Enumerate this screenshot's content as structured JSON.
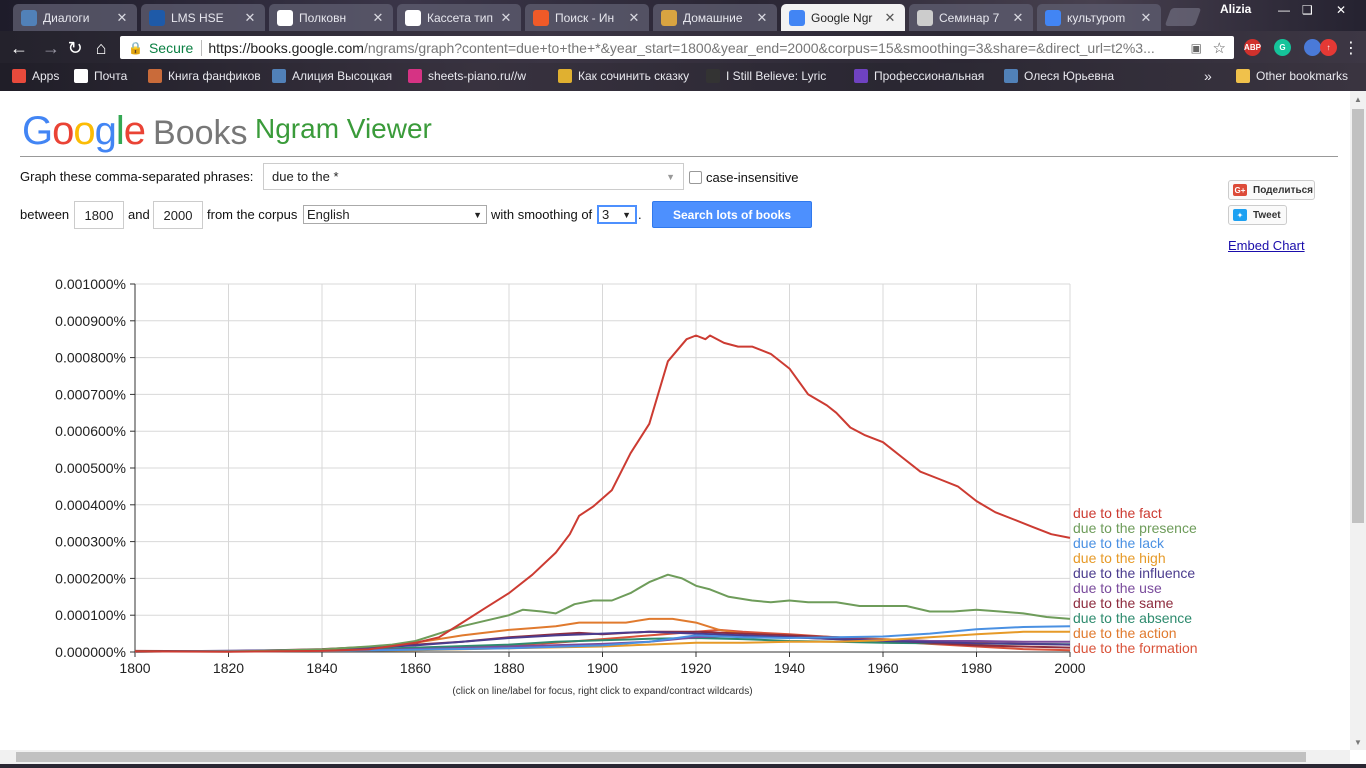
{
  "tabs": [
    {
      "label": "Диалоги",
      "favicon": "vk-icon",
      "color": "#5181b8",
      "active": false
    },
    {
      "label": "LMS HSE",
      "favicon": "lms-icon",
      "color": "#1e5aa8",
      "active": false
    },
    {
      "label": "Полковн",
      "favicon": "play-icon",
      "color": "#ffffff",
      "active": false
    },
    {
      "label": "Кассета тип",
      "favicon": "wikipedia-icon",
      "color": "#ffffff",
      "active": false
    },
    {
      "label": "Поиск - Ин",
      "favicon": "search-engine-icon",
      "color": "#f05a28",
      "active": false
    },
    {
      "label": "Домашние",
      "favicon": "home-icon",
      "color": "#d9a441",
      "active": false
    },
    {
      "label": "Google Ngr",
      "favicon": "google-icon",
      "color": "#4285f4",
      "active": true
    },
    {
      "label": "Семинар 7",
      "favicon": "book-icon",
      "color": "#cccccc",
      "active": false
    },
    {
      "label": "культуроm",
      "favicon": "google-icon",
      "color": "#4285f4",
      "active": false
    }
  ],
  "profile_name": "Alizia",
  "address": {
    "secure_label": "Secure",
    "url_host": "https://books.google.com",
    "url_rest": "/ngrams/graph?content=due+to+the+*&year_start=1800&year_end=2000&corpus=15&smoothing=3&share=&direct_url=t2%3..."
  },
  "extensions": [
    {
      "name": "adblock-icon",
      "text": "ABP",
      "color": "#d0312d"
    },
    {
      "name": "grammarly-icon",
      "text": "G",
      "color": "#15c39a"
    },
    {
      "name": "flag-icon",
      "text": "",
      "color": "#4a7ad8"
    },
    {
      "name": "update-icon",
      "text": "↑",
      "color": "#e53935"
    }
  ],
  "bookmarks": [
    {
      "label": "Apps",
      "color": "#e84a3c"
    },
    {
      "label": "Почта",
      "color": "#ffffff"
    },
    {
      "label": "Книга фанфиков",
      "color": "#c96b3a"
    },
    {
      "label": "Алиция Высоцкая",
      "color": "#5181b8"
    },
    {
      "label": "sheets-piano.ru//w",
      "color": "#d63384"
    },
    {
      "label": "Как сочинить сказку",
      "color": "#e0b030"
    },
    {
      "label": "I Still Believe: Lyric",
      "color": "#333333"
    },
    {
      "label": "Профессиональная",
      "color": "#6f42c1"
    },
    {
      "label": "Олеся Юрьевна",
      "color": "#5181b8"
    },
    {
      "label": "Other bookmarks",
      "color": "#f0c14b"
    }
  ],
  "bookmarks_overflow": "»",
  "header": {
    "logo_letters": [
      "G",
      "o",
      "o",
      "g",
      "l",
      "e"
    ],
    "logo_books": "Books",
    "title": "Ngram Viewer"
  },
  "form": {
    "phrases_label": "Graph these comma-separated phrases:",
    "phrases_value": "due to the *",
    "case_label": "case-insensitive",
    "between_label": "between",
    "year_start": "1800",
    "and_label": "and",
    "year_end": "2000",
    "corpus_label": "from the corpus",
    "corpus_value": "English",
    "smoothing_label": "with smoothing of",
    "smoothing_value": "3",
    "period": ".",
    "search_button": "Search lots of books"
  },
  "share": {
    "gplus_label": "Поделиться",
    "tweet_label": "Tweet",
    "embed_label": "Embed Chart"
  },
  "caption": "(click on line/label for focus, right click to expand/contract wildcards)",
  "chart_data": {
    "type": "line",
    "xlim": [
      1800,
      2000
    ],
    "ylim": [
      0,
      0.001
    ],
    "x_ticks": [
      "1800",
      "1820",
      "1840",
      "1860",
      "1880",
      "1900",
      "1920",
      "1940",
      "1960",
      "1980",
      "2000"
    ],
    "y_ticks": [
      "0.000000%",
      "0.000100%",
      "0.000200%",
      "0.000300%",
      "0.000400%",
      "0.000500%",
      "0.000600%",
      "0.000700%",
      "0.000800%",
      "0.000900%",
      "0.001000%"
    ],
    "grid": true,
    "legend_placement": "right",
    "series": [
      {
        "name": "due to the fact",
        "color": "#cc3b32",
        "points": [
          [
            1800,
            1.5e-06
          ],
          [
            1820,
            5e-07
          ],
          [
            1840,
            3e-06
          ],
          [
            1850,
            7e-06
          ],
          [
            1860,
            2.5e-05
          ],
          [
            1865,
            4e-05
          ],
          [
            1870,
            8e-05
          ],
          [
            1875,
            0.00012
          ],
          [
            1880,
            0.00016
          ],
          [
            1885,
            0.00021
          ],
          [
            1890,
            0.00027
          ],
          [
            1893,
            0.00032
          ],
          [
            1895,
            0.00037
          ],
          [
            1898,
            0.000395
          ],
          [
            1902,
            0.00044
          ],
          [
            1906,
            0.00054
          ],
          [
            1910,
            0.00062
          ],
          [
            1914,
            0.00079
          ],
          [
            1918,
            0.00085
          ],
          [
            1920,
            0.00086
          ],
          [
            1922,
            0.00085
          ],
          [
            1923,
            0.00086
          ],
          [
            1926,
            0.00084
          ],
          [
            1929,
            0.00083
          ],
          [
            1932,
            0.00083
          ],
          [
            1936,
            0.00081
          ],
          [
            1940,
            0.00077
          ],
          [
            1944,
            0.0007
          ],
          [
            1948,
            0.00067
          ],
          [
            1950,
            0.00065
          ],
          [
            1953,
            0.00061
          ],
          [
            1956,
            0.00059
          ],
          [
            1960,
            0.00057
          ],
          [
            1964,
            0.00053
          ],
          [
            1968,
            0.00049
          ],
          [
            1972,
            0.00047
          ],
          [
            1976,
            0.00045
          ],
          [
            1980,
            0.00041
          ],
          [
            1984,
            0.00038
          ],
          [
            1988,
            0.00036
          ],
          [
            1992,
            0.00034
          ],
          [
            1996,
            0.00032
          ],
          [
            2000,
            0.00031
          ]
        ]
      },
      {
        "name": "due to the presence",
        "color": "#6e9c5a",
        "points": [
          [
            1800,
            2e-06
          ],
          [
            1820,
            1e-06
          ],
          [
            1840,
            7e-06
          ],
          [
            1850,
            1.5e-05
          ],
          [
            1855,
            2e-05
          ],
          [
            1860,
            3e-05
          ],
          [
            1865,
            5e-05
          ],
          [
            1870,
            7e-05
          ],
          [
            1875,
            8.5e-05
          ],
          [
            1880,
            0.0001
          ],
          [
            1883,
            0.000115
          ],
          [
            1887,
            0.00011
          ],
          [
            1890,
            0.000105
          ],
          [
            1894,
            0.00013
          ],
          [
            1898,
            0.00014
          ],
          [
            1902,
            0.00014
          ],
          [
            1906,
            0.00016
          ],
          [
            1910,
            0.00019
          ],
          [
            1914,
            0.00021
          ],
          [
            1917,
            0.0002
          ],
          [
            1920,
            0.00018
          ],
          [
            1923,
            0.00017
          ],
          [
            1927,
            0.00015
          ],
          [
            1932,
            0.00014
          ],
          [
            1936,
            0.000135
          ],
          [
            1940,
            0.00014
          ],
          [
            1944,
            0.000135
          ],
          [
            1950,
            0.000135
          ],
          [
            1955,
            0.000125
          ],
          [
            1960,
            0.000125
          ],
          [
            1965,
            0.000125
          ],
          [
            1970,
            0.00011
          ],
          [
            1975,
            0.00011
          ],
          [
            1980,
            0.000115
          ],
          [
            1985,
            0.00011
          ],
          [
            1990,
            0.000105
          ],
          [
            1995,
            9.5e-05
          ],
          [
            2000,
            9e-05
          ]
        ]
      },
      {
        "name": "due to the lack",
        "color": "#4a90e2",
        "points": [
          [
            1800,
            1e-06
          ],
          [
            1840,
            3e-06
          ],
          [
            1860,
            6e-06
          ],
          [
            1880,
            1e-05
          ],
          [
            1900,
            1.8e-05
          ],
          [
            1910,
            2.8e-05
          ],
          [
            1920,
            4.5e-05
          ],
          [
            1930,
            4e-05
          ],
          [
            1940,
            3.8e-05
          ],
          [
            1950,
            4e-05
          ],
          [
            1960,
            4.2e-05
          ],
          [
            1970,
            5e-05
          ],
          [
            1980,
            6.2e-05
          ],
          [
            1990,
            6.8e-05
          ],
          [
            2000,
            7e-05
          ]
        ]
      },
      {
        "name": "due to the high",
        "color": "#e69a28",
        "points": [
          [
            1800,
            1e-06
          ],
          [
            1840,
            3e-06
          ],
          [
            1860,
            5e-06
          ],
          [
            1880,
            1e-05
          ],
          [
            1900,
            1.5e-05
          ],
          [
            1910,
            2e-05
          ],
          [
            1920,
            2.5e-05
          ],
          [
            1930,
            2.5e-05
          ],
          [
            1940,
            2.8e-05
          ],
          [
            1950,
            2.8e-05
          ],
          [
            1960,
            3.2e-05
          ],
          [
            1970,
            4e-05
          ],
          [
            1980,
            4.8e-05
          ],
          [
            1990,
            5.5e-05
          ],
          [
            2000,
            5.5e-05
          ]
        ]
      },
      {
        "name": "due to the influence",
        "color": "#4b3c8e",
        "points": [
          [
            1800,
            1e-06
          ],
          [
            1840,
            6e-06
          ],
          [
            1860,
            1.8e-05
          ],
          [
            1870,
            2.8e-05
          ],
          [
            1880,
            3.8e-05
          ],
          [
            1890,
            4.5e-05
          ],
          [
            1900,
            5e-05
          ],
          [
            1910,
            5.5e-05
          ],
          [
            1920,
            5e-05
          ],
          [
            1930,
            4.5e-05
          ],
          [
            1940,
            4e-05
          ],
          [
            1950,
            3.5e-05
          ],
          [
            1960,
            3e-05
          ],
          [
            1970,
            2.7e-05
          ],
          [
            1980,
            2.4e-05
          ],
          [
            1990,
            2.2e-05
          ],
          [
            2000,
            2e-05
          ]
        ]
      },
      {
        "name": "due to the use",
        "color": "#7a4b9c",
        "points": [
          [
            1800,
            1e-06
          ],
          [
            1840,
            3e-06
          ],
          [
            1860,
            8e-06
          ],
          [
            1880,
            1.5e-05
          ],
          [
            1900,
            2.2e-05
          ],
          [
            1910,
            2.8e-05
          ],
          [
            1920,
            4e-05
          ],
          [
            1930,
            4.5e-05
          ],
          [
            1940,
            4e-05
          ],
          [
            1950,
            3.5e-05
          ],
          [
            1960,
            3.3e-05
          ],
          [
            1970,
            3e-05
          ],
          [
            1980,
            3e-05
          ],
          [
            1990,
            2.8e-05
          ],
          [
            2000,
            2.8e-05
          ]
        ]
      },
      {
        "name": "due to the same",
        "color": "#8e2c3e",
        "points": [
          [
            1800,
            3e-06
          ],
          [
            1820,
            2e-06
          ],
          [
            1840,
            8e-06
          ],
          [
            1860,
            2e-05
          ],
          [
            1870,
            2.8e-05
          ],
          [
            1880,
            4e-05
          ],
          [
            1890,
            4.8e-05
          ],
          [
            1895,
            5.2e-05
          ],
          [
            1900,
            4.8e-05
          ],
          [
            1905,
            5.2e-05
          ],
          [
            1910,
            5.5e-05
          ],
          [
            1920,
            5.5e-05
          ],
          [
            1930,
            5e-05
          ],
          [
            1940,
            4.5e-05
          ],
          [
            1950,
            4e-05
          ],
          [
            1960,
            3.2e-05
          ],
          [
            1970,
            2.5e-05
          ],
          [
            1980,
            1.8e-05
          ],
          [
            1990,
            1.5e-05
          ],
          [
            2000,
            1.2e-05
          ]
        ]
      },
      {
        "name": "due to the absence",
        "color": "#2e8b6e",
        "points": [
          [
            1800,
            1e-06
          ],
          [
            1840,
            4e-06
          ],
          [
            1860,
            1.2e-05
          ],
          [
            1880,
            2e-05
          ],
          [
            1890,
            2.8e-05
          ],
          [
            1900,
            3.2e-05
          ],
          [
            1910,
            3.6e-05
          ],
          [
            1920,
            3.8e-05
          ],
          [
            1930,
            3.5e-05
          ],
          [
            1940,
            3e-05
          ],
          [
            1950,
            2.8e-05
          ],
          [
            1960,
            2.5e-05
          ],
          [
            1970,
            2.4e-05
          ],
          [
            1980,
            2.3e-05
          ],
          [
            1990,
            2.2e-05
          ],
          [
            2000,
            2.1e-05
          ]
        ]
      },
      {
        "name": "due to the action",
        "color": "#e07a2e",
        "points": [
          [
            1800,
            1e-06
          ],
          [
            1830,
            3e-06
          ],
          [
            1850,
            1e-05
          ],
          [
            1860,
            2.5e-05
          ],
          [
            1870,
            4.5e-05
          ],
          [
            1880,
            6e-05
          ],
          [
            1885,
            6.5e-05
          ],
          [
            1890,
            7e-05
          ],
          [
            1895,
            8e-05
          ],
          [
            1900,
            8e-05
          ],
          [
            1905,
            8e-05
          ],
          [
            1910,
            9e-05
          ],
          [
            1915,
            9e-05
          ],
          [
            1920,
            8e-05
          ],
          [
            1925,
            6e-05
          ],
          [
            1930,
            5e-05
          ],
          [
            1940,
            4.5e-05
          ],
          [
            1950,
            4e-05
          ],
          [
            1960,
            3.5e-05
          ],
          [
            1970,
            3e-05
          ],
          [
            1980,
            2.5e-05
          ],
          [
            1990,
            2.2e-05
          ],
          [
            2000,
            2e-05
          ]
        ]
      },
      {
        "name": "due to the formation",
        "color": "#d9533a",
        "points": [
          [
            1800,
            1e-06
          ],
          [
            1840,
            4e-06
          ],
          [
            1860,
            1e-05
          ],
          [
            1880,
            1.8e-05
          ],
          [
            1890,
            2.5e-05
          ],
          [
            1900,
            3.5e-05
          ],
          [
            1910,
            4.5e-05
          ],
          [
            1920,
            5.5e-05
          ],
          [
            1925,
            6e-05
          ],
          [
            1930,
            5.5e-05
          ],
          [
            1940,
            4.8e-05
          ],
          [
            1950,
            4e-05
          ],
          [
            1960,
            3e-05
          ],
          [
            1970,
            2.2e-05
          ],
          [
            1980,
            1.5e-05
          ],
          [
            1990,
            8e-06
          ],
          [
            2000,
            5e-06
          ]
        ]
      }
    ]
  }
}
